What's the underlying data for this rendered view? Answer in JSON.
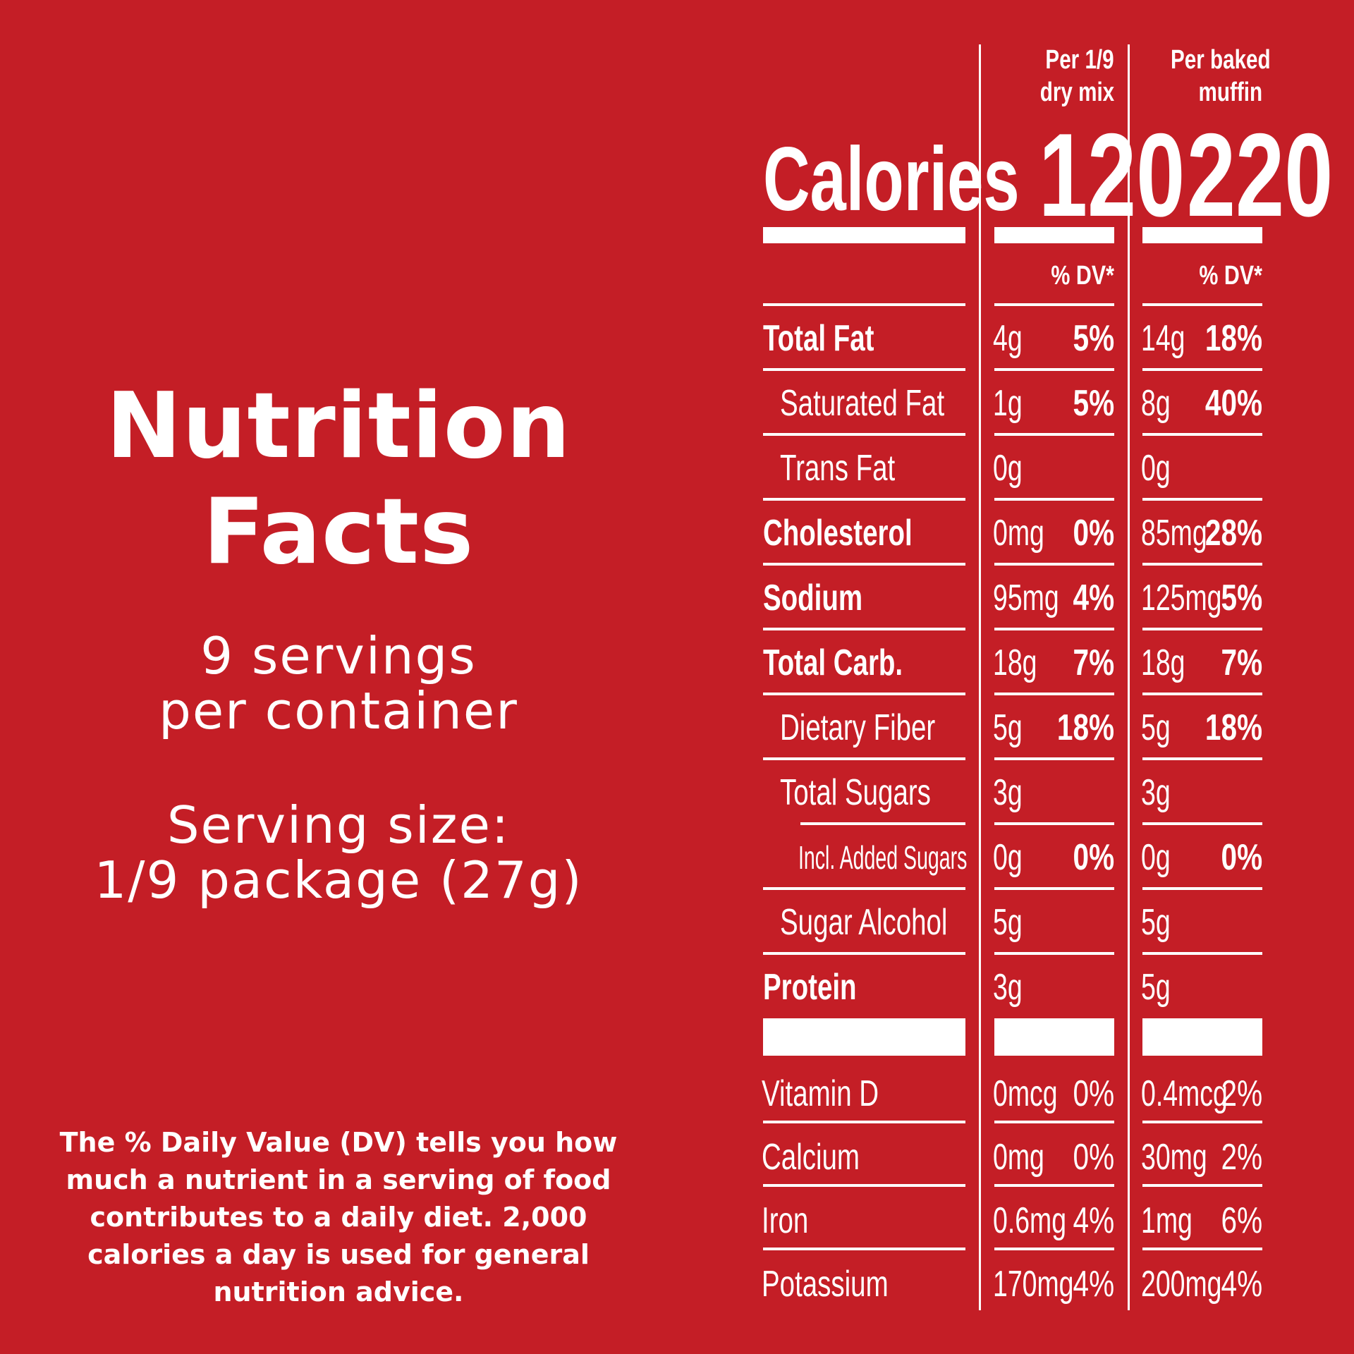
{
  "left": {
    "title_line1": "Nutrition",
    "title_line2": "Facts",
    "servings_line1": "9 servings",
    "servings_line2": "per container",
    "serving_size_line1": "Serving size:",
    "serving_size_line2": "1/9 package (27g)",
    "footnote_lines": [
      "The % Daily Value (DV) tells you how",
      "much a nutrient in a serving of food",
      "contributes to a daily diet. 2,000",
      "calories a day is used for general",
      "nutrition advice."
    ]
  },
  "table": {
    "columns": [
      {
        "header_line1": "Per 1/9",
        "header_line2": "dry mix",
        "calories": "120",
        "dv_label": "% DV*"
      },
      {
        "header_line1": "Per baked",
        "header_line2": "muffin",
        "calories": "220",
        "dv_label": "% DV*"
      }
    ],
    "calories_label": "Calories",
    "rows": [
      {
        "label": "Total Fat",
        "bold": true,
        "indent": 0,
        "col1_amount": "4g",
        "col1_dv": "5%",
        "col2_amount": "14g",
        "col2_dv": "18%"
      },
      {
        "label": "Saturated Fat",
        "bold": false,
        "indent": 1,
        "col1_amount": "1g",
        "col1_dv": "5%",
        "col2_amount": "8g",
        "col2_dv": "40%"
      },
      {
        "label": "Trans Fat",
        "bold": false,
        "indent": 1,
        "col1_amount": "0g",
        "col1_dv": "",
        "col2_amount": "0g",
        "col2_dv": ""
      },
      {
        "label": "Cholesterol",
        "bold": true,
        "indent": 0,
        "col1_amount": "0mg",
        "col1_dv": "0%",
        "col2_amount": "85mg",
        "col2_dv": "28%"
      },
      {
        "label": "Sodium",
        "bold": true,
        "indent": 0,
        "col1_amount": "95mg",
        "col1_dv": "4%",
        "col2_amount": "125mg",
        "col2_dv": "5%"
      },
      {
        "label": "Total Carb.",
        "bold": true,
        "indent": 0,
        "col1_amount": "18g",
        "col1_dv": "7%",
        "col2_amount": "18g",
        "col2_dv": "7%"
      },
      {
        "label": "Dietary Fiber",
        "bold": false,
        "indent": 1,
        "col1_amount": "5g",
        "col1_dv": "18%",
        "col2_amount": "5g",
        "col2_dv": "18%"
      },
      {
        "label": "Total Sugars",
        "bold": false,
        "indent": 1,
        "col1_amount": "3g",
        "col1_dv": "",
        "col2_amount": "3g",
        "col2_dv": ""
      },
      {
        "label": "Incl. Added Sugars",
        "bold": false,
        "indent": 2,
        "col1_amount": "0g",
        "col1_dv": "0%",
        "col2_amount": "0g",
        "col2_dv": "0%"
      },
      {
        "label": "Sugar Alcohol",
        "bold": false,
        "indent": 1,
        "col1_amount": "5g",
        "col1_dv": "",
        "col2_amount": "5g",
        "col2_dv": ""
      },
      {
        "label": "Protein",
        "bold": true,
        "indent": 0,
        "col1_amount": "3g",
        "col1_dv": "",
        "col2_amount": "5g",
        "col2_dv": ""
      }
    ],
    "vitamins": [
      {
        "label": "Vitamin D",
        "col1_amount": "0mcg",
        "col1_dv": "0%",
        "col2_amount": "0.4mcg",
        "col2_dv": "2%"
      },
      {
        "label": "Calcium",
        "col1_amount": "0mg",
        "col1_dv": "0%",
        "col2_amount": "30mg",
        "col2_dv": "2%"
      },
      {
        "label": "Iron",
        "col1_amount": "0.6mg",
        "col1_dv": "4%",
        "col2_amount": "1mg",
        "col2_dv": "6%"
      },
      {
        "label": "Potassium",
        "col1_amount": "170mg",
        "col1_dv": "4%",
        "col2_amount": "200mg",
        "col2_dv": "4%"
      }
    ]
  },
  "colors": {
    "background": "#C41E26",
    "foreground": "#FFFFFF"
  }
}
